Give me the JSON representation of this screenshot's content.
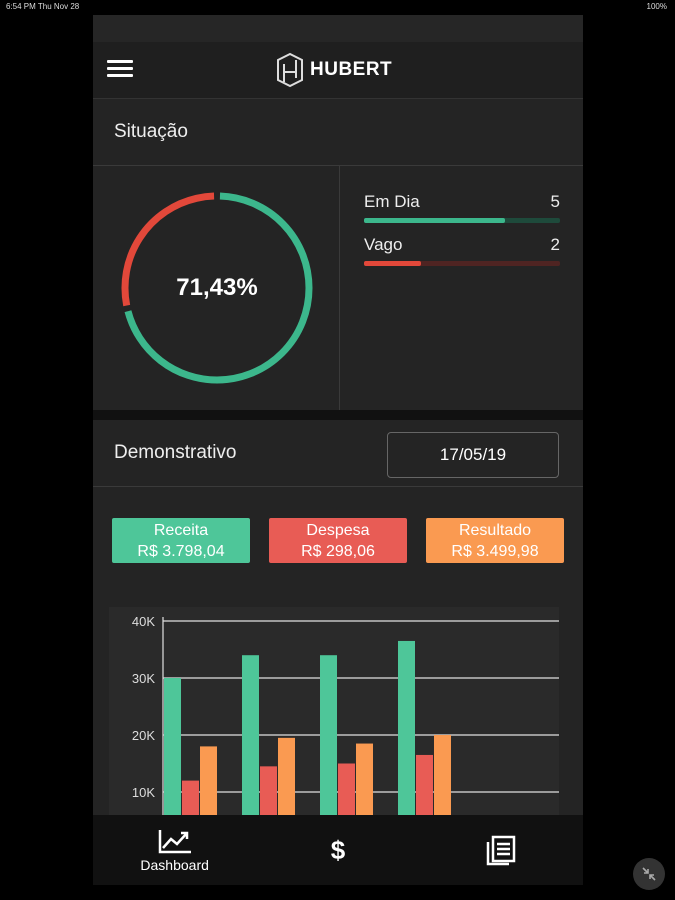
{
  "status_bar": {
    "time_date": "6:54 PM   Thu Nov 28",
    "battery": "100%"
  },
  "header": {
    "brand": "HUBERT"
  },
  "situacao": {
    "title": "Situação",
    "percent_label": "71,43%",
    "percent_value": 0.7143,
    "stats": [
      {
        "label": "Em Dia",
        "value": "5",
        "fraction": 0.72,
        "color": "#3cb78c",
        "track": "#1e4a3b"
      },
      {
        "label": "Vago",
        "value": "2",
        "fraction": 0.29,
        "color": "#e2483a",
        "track": "#4f2422"
      }
    ],
    "colors": {
      "ok": "#3cb78c",
      "bad": "#e2483a"
    }
  },
  "demonstrativo": {
    "title": "Demonstrativo",
    "date": "17/05/19",
    "pills": [
      {
        "label": "Receita",
        "value": "R$ 3.798,04",
        "color": "#4ec699"
      },
      {
        "label": "Despesa",
        "value": "R$ 298,06",
        "color": "#e85c55"
      },
      {
        "label": "Resultado",
        "value": "R$ 3.499,98",
        "color": "#fa9a51"
      }
    ]
  },
  "chart_data": {
    "type": "bar",
    "ytick_labels": [
      "10K",
      "20K",
      "30K",
      "40K"
    ],
    "ylim": [
      5000,
      40000
    ],
    "series": [
      {
        "color": "#4ec699",
        "values": [
          30000,
          34000,
          34000,
          36500
        ]
      },
      {
        "color": "#e85c55",
        "values": [
          12000,
          14500,
          15000,
          16500
        ]
      },
      {
        "color": "#fa9a51",
        "values": [
          18000,
          19500,
          18500,
          20000
        ]
      }
    ],
    "grid": true
  },
  "tabs": [
    {
      "label": "Dashboard",
      "icon": "trending-up-icon"
    },
    {
      "label": "",
      "icon": "dollar-icon",
      "glyph": "$"
    },
    {
      "label": "",
      "icon": "document-list-icon"
    }
  ]
}
